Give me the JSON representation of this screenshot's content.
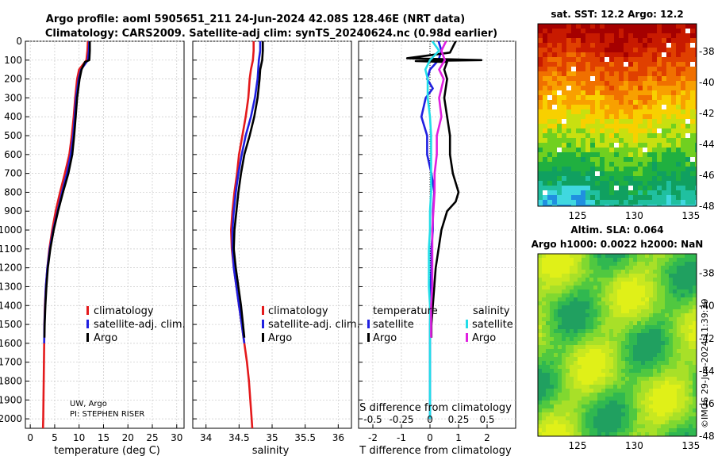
{
  "title_line1": "Argo profile: aoml 5905651_211 24-Jun-2024 42.08S 128.46E (NRT data)",
  "title_line2": "Climatology: CARS2009. Satellite-adj clim: synTS_20240624.nc (0.98d earlier)",
  "credit_line1": "UW, Argo",
  "credit_line2": "PI: STEPHEN RISER",
  "copyright": "©IMOS 29-Jun-2024 11:39:39",
  "colors": {
    "climatology": "#e41a1c",
    "satellite": "#1f1fe0",
    "argo": "#000000",
    "sal_satellite": "#22dde8",
    "sal_argo": "#e020e0"
  },
  "chart_data": [
    {
      "id": "temperature",
      "type": "line",
      "xlabel": "temperature (deg C)",
      "ylabel": "",
      "xlim": [
        -1,
        31.5
      ],
      "ylim": [
        2050,
        0
      ],
      "xticks": [
        0,
        5,
        10,
        15,
        20,
        25,
        30
      ],
      "yticks": [
        0,
        100,
        200,
        300,
        400,
        500,
        600,
        700,
        800,
        900,
        1000,
        1100,
        1200,
        1300,
        1400,
        1500,
        1600,
        1700,
        1800,
        1900,
        2000
      ],
      "legend": [
        "climatology",
        "satellite-adj. clim.",
        "Argo"
      ],
      "series": [
        {
          "name": "climatology",
          "color": "#e41a1c",
          "depth": [
            0,
            50,
            100,
            150,
            200,
            300,
            400,
            500,
            600,
            700,
            800,
            900,
            1000,
            1100,
            1200,
            1300,
            1400,
            1500,
            1600,
            1700,
            1800,
            1900,
            2000,
            2050
          ],
          "values": [
            11.8,
            11.7,
            11.5,
            10.0,
            9.6,
            9.2,
            8.9,
            8.5,
            8.0,
            7.1,
            6.1,
            5.2,
            4.5,
            3.9,
            3.5,
            3.2,
            3.0,
            2.9,
            2.85,
            2.8,
            2.75,
            2.7,
            2.65,
            2.6
          ]
        },
        {
          "name": "satellite-adj. clim.",
          "color": "#1f1fe0",
          "depth": [
            0,
            50,
            100,
            150,
            200,
            300,
            400,
            500,
            600,
            700,
            800,
            900,
            1000,
            1100,
            1200,
            1300,
            1400,
            1500,
            1600
          ],
          "values": [
            12.1,
            12.0,
            11.8,
            10.4,
            9.9,
            9.4,
            9.1,
            8.8,
            8.3,
            7.5,
            6.5,
            5.6,
            4.7,
            4.0,
            3.5,
            3.2,
            3.05,
            2.9,
            2.85
          ]
        },
        {
          "name": "Argo",
          "color": "#000000",
          "depth": [
            0,
            50,
            100,
            110,
            150,
            200,
            300,
            400,
            500,
            600,
            700,
            800,
            900,
            1000,
            1100,
            1200,
            1300,
            1400,
            1500,
            1570
          ],
          "values": [
            12.2,
            12.2,
            12.1,
            11.2,
            10.5,
            10.1,
            9.6,
            9.3,
            9.0,
            8.6,
            7.8,
            6.7,
            5.7,
            4.8,
            4.1,
            3.6,
            3.3,
            3.1,
            2.95,
            2.9
          ]
        }
      ]
    },
    {
      "id": "salinity",
      "type": "line",
      "xlabel": "salinity",
      "ylabel": "",
      "xlim": [
        33.8,
        36.2
      ],
      "ylim": [
        2050,
        0
      ],
      "xticks": [
        34,
        34.5,
        35,
        35.5,
        36
      ],
      "legend": [
        "climatology",
        "satellite-adj. clim.",
        "Argo"
      ],
      "series": [
        {
          "name": "climatology",
          "color": "#e41a1c",
          "depth": [
            0,
            50,
            100,
            150,
            200,
            300,
            400,
            500,
            600,
            700,
            800,
            900,
            1000,
            1100,
            1200,
            1300,
            1400,
            1500,
            1600,
            1700,
            1800,
            1900,
            2000,
            2050
          ],
          "values": [
            34.72,
            34.72,
            34.71,
            34.68,
            34.66,
            34.64,
            34.6,
            34.55,
            34.5,
            34.47,
            34.43,
            34.4,
            34.38,
            34.39,
            34.42,
            34.46,
            34.5,
            34.54,
            34.58,
            34.62,
            34.65,
            34.67,
            34.69,
            34.7
          ]
        },
        {
          "name": "satellite-adj. clim.",
          "color": "#1f1fe0",
          "depth": [
            0,
            50,
            100,
            150,
            200,
            300,
            400,
            500,
            600,
            700,
            800,
            900,
            1000,
            1100,
            1200,
            1300,
            1400,
            1500,
            1600
          ],
          "values": [
            34.82,
            34.82,
            34.8,
            34.79,
            34.78,
            34.74,
            34.68,
            34.6,
            34.54,
            34.49,
            34.45,
            34.42,
            34.4,
            34.4,
            34.42,
            34.46,
            34.5,
            34.54,
            34.58
          ]
        },
        {
          "name": "Argo",
          "color": "#000000",
          "depth": [
            0,
            50,
            100,
            150,
            200,
            300,
            400,
            500,
            600,
            700,
            800,
            900,
            1000,
            1100,
            1200,
            1300,
            1400,
            1500,
            1570
          ],
          "values": [
            34.86,
            34.86,
            34.85,
            34.82,
            34.81,
            34.78,
            34.73,
            34.66,
            34.58,
            34.53,
            34.49,
            34.46,
            34.43,
            34.42,
            34.45,
            34.49,
            34.53,
            34.56,
            34.58
          ]
        }
      ]
    },
    {
      "id": "differences",
      "type": "line",
      "xlabel": "T difference from climatology",
      "xlabel_top": "S difference from climatology",
      "xlim": [
        -2.5,
        3
      ],
      "ylim": [
        2050,
        0
      ],
      "xticks": [
        -2,
        -1,
        0,
        1,
        2
      ],
      "xticks_s": [
        "-0.5",
        "-0.25",
        "0",
        "0.25",
        "0.5"
      ],
      "legend_t_title": "temperature",
      "legend_s_title": "salinity",
      "legend_t": [
        "satellite",
        "Argo"
      ],
      "legend_s": [
        "satellite",
        "Argo"
      ],
      "series": [
        {
          "name": "T satellite",
          "color": "#1f1fe0",
          "depth": [
            0,
            50,
            100,
            150,
            200,
            250,
            300,
            400,
            500,
            600,
            700,
            800,
            900,
            1000,
            1100,
            1200,
            1300,
            1400,
            1500,
            1600,
            1800,
            2000
          ],
          "values": [
            0.3,
            0.4,
            0.3,
            0.0,
            -0.1,
            0.1,
            -0.15,
            -0.3,
            -0.1,
            -0.1,
            0.05,
            0.15,
            0.1,
            0.1,
            0.05,
            0.05,
            0.02,
            0.02,
            0.0,
            0.0,
            0.0,
            0.0
          ]
        },
        {
          "name": "T Argo",
          "color": "#000000",
          "depth": [
            0,
            60,
            90,
            100,
            105,
            110,
            150,
            200,
            300,
            400,
            500,
            600,
            700,
            800,
            850,
            900,
            1000,
            1100,
            1200,
            1300,
            1400,
            1500,
            1570
          ],
          "values": [
            0.9,
            0.7,
            -0.8,
            1.8,
            -0.5,
            0.6,
            0.5,
            0.6,
            0.5,
            0.6,
            0.7,
            0.7,
            0.8,
            1.0,
            0.9,
            0.6,
            0.4,
            0.3,
            0.2,
            0.15,
            0.1,
            0.05,
            0.05
          ]
        },
        {
          "name": "S satellite",
          "color": "#22dde8",
          "depth": [
            0,
            50,
            100,
            150,
            200,
            300,
            400,
            500,
            600,
            700,
            800,
            900,
            1000,
            1100,
            1200,
            1300,
            1400,
            1500,
            1600,
            1800,
            2000
          ],
          "values": [
            0.02,
            0.08,
            0.0,
            -0.04,
            -0.02,
            -0.02,
            0.0,
            0.01,
            0.01,
            0.01,
            0.01,
            0.0,
            0.0,
            -0.01,
            -0.01,
            -0.01,
            0.0,
            0.0,
            0.0,
            0.0,
            0.0
          ]
        },
        {
          "name": "S Argo",
          "color": "#e020e0",
          "depth": [
            0,
            50,
            100,
            150,
            200,
            300,
            400,
            500,
            600,
            700,
            800,
            900,
            1000,
            1100,
            1200,
            1300,
            1400,
            1500,
            1570
          ],
          "values": [
            0.14,
            0.1,
            0.13,
            0.08,
            0.12,
            0.08,
            0.1,
            0.06,
            0.06,
            0.04,
            0.04,
            0.03,
            0.02,
            0.02,
            0.02,
            0.02,
            0.01,
            0.01,
            0.01
          ]
        }
      ]
    },
    {
      "id": "sst_map",
      "type": "heatmap",
      "title": "sat. SST: 12.2 Argo: 12.2",
      "xticks": [
        125,
        130,
        135
      ],
      "yticks": [
        -38,
        -40,
        -42,
        -44,
        -46,
        -48
      ],
      "xlim": [
        121.5,
        135.5
      ],
      "ylim": [
        -48,
        -36.2
      ],
      "marker": {
        "lon": 128.46,
        "lat": -42.08
      }
    },
    {
      "id": "sla_map",
      "type": "heatmap",
      "title_line1": "Altim. SLA: 0.064",
      "title_line2": "Argo h1000: 0.0022 h2000: NaN",
      "xticks": [
        125,
        130,
        135
      ],
      "yticks": [
        -38,
        -40,
        -42,
        -44,
        -46,
        -48
      ],
      "xlim": [
        121.5,
        135.5
      ],
      "ylim": [
        -48,
        -36.8
      ],
      "marker": {
        "lon": 128.46,
        "lat": -42.08
      }
    }
  ]
}
